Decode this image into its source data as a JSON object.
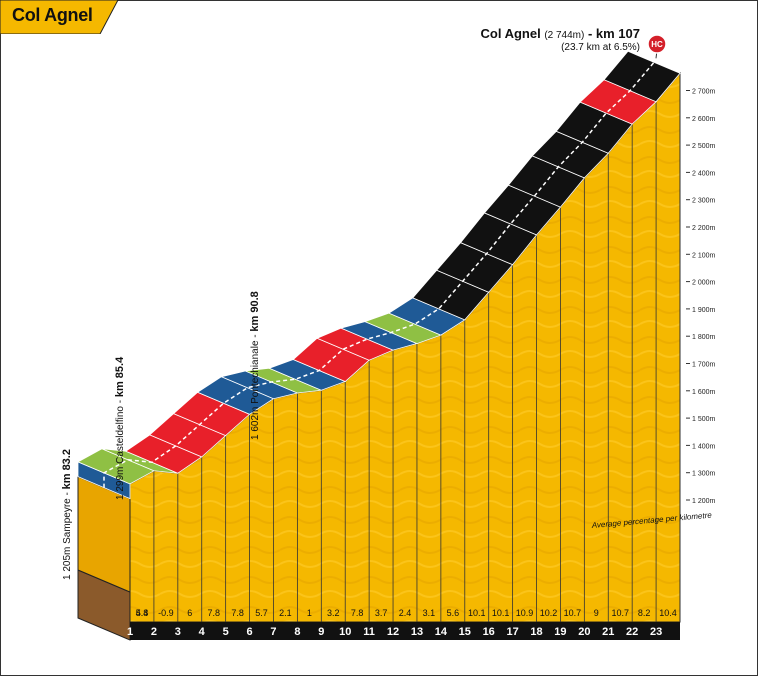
{
  "title": "Col Agnel",
  "summit": {
    "name": "Col Agnel",
    "altitude": "(2 744m)",
    "km_sep": " - ",
    "km": "km 107",
    "stats": "(23.7 km at 6.5%)",
    "category": "HC"
  },
  "towns": [
    {
      "alt": "1 205m Sampeyre",
      "km": "km 83.2",
      "at_km": 0
    },
    {
      "alt": "1 299m Casteldelfino",
      "km": "km 85.4",
      "at_km": 2.2
    },
    {
      "alt": "1 602m Pontechianale",
      "km": "km 90.8",
      "at_km": 7.6
    }
  ],
  "legend_note": "Average percentage per kilometre",
  "colors": {
    "ground": "#f5b800",
    "ground_side": "#e8a500",
    "base_side": "#8b5a2b",
    "base_bottom": "#111111",
    "blue": "#1f5a96",
    "green": "#8fc044",
    "red": "#e8202a",
    "black": "#111111",
    "summit_marker": "#d4202a"
  },
  "chart_data": {
    "type": "area",
    "x_unit": "km",
    "y_unit": "m",
    "start_altitude": 1205,
    "kilometres": [
      1,
      2,
      3,
      4,
      5,
      6,
      7,
      8,
      9,
      10,
      11,
      12,
      13,
      14,
      15,
      16,
      17,
      18,
      19,
      20,
      21,
      22,
      23
    ],
    "gradients": [
      5.4,
      4.8,
      -0.9,
      6,
      7.8,
      7.8,
      5.7,
      2.1,
      1,
      3.2,
      7.8,
      3.7,
      2.4,
      3.1,
      5.6,
      10.1,
      10.1,
      10.9,
      10.2,
      10.7,
      9,
      10.7,
      8.2,
      10.4
    ],
    "gradient_colors": [
      "blue",
      "green",
      "green",
      "red",
      "red",
      "red",
      "blue",
      "blue",
      "green",
      "blue",
      "red",
      "red",
      "blue",
      "green",
      "blue",
      "black",
      "black",
      "black",
      "black",
      "black",
      "black",
      "black",
      "red",
      "black"
    ],
    "y_ticks": [
      "1 200m",
      "1 300m",
      "1 400m",
      "1 500m",
      "1 600m",
      "1 700m",
      "1 800m",
      "1 900m",
      "2 000m",
      "2 100m",
      "2 200m",
      "2 300m",
      "2 400m",
      "2 500m",
      "2 600m",
      "2 700m"
    ],
    "y_tick_values": [
      1200,
      1300,
      1400,
      1500,
      1600,
      1700,
      1800,
      1900,
      2000,
      2100,
      2200,
      2300,
      2400,
      2500,
      2600,
      2700
    ],
    "ylim": [
      1000,
      2744
    ]
  }
}
